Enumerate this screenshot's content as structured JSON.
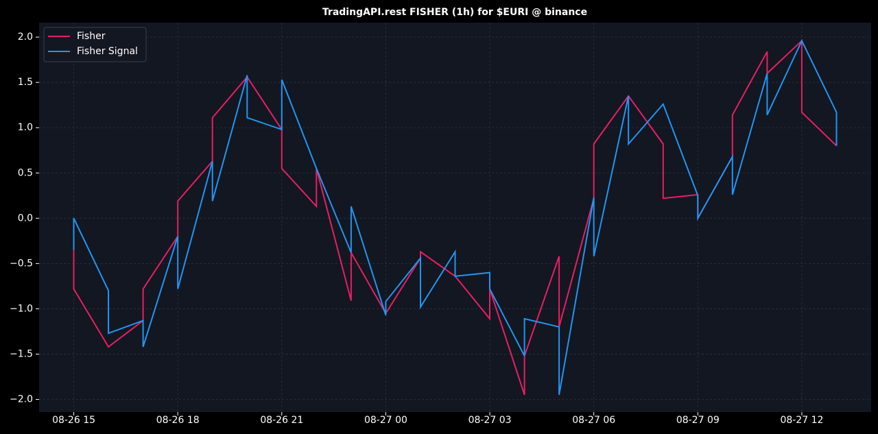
{
  "chart_data": {
    "type": "line",
    "title": "TradingAPI.rest FISHER (1h) for $EURI @ binance",
    "x": [
      "08-26 15",
      "08-26 15",
      "08-26 16",
      "08-26 16",
      "08-26 17",
      "08-26 17",
      "08-26 18",
      "08-26 18",
      "08-26 19",
      "08-26 19",
      "08-26 20",
      "08-26 20",
      "08-26 21",
      "08-26 21",
      "08-26 22",
      "08-26 22",
      "08-26 23",
      "08-26 23",
      "08-27 00",
      "08-27 00",
      "08-27 01",
      "08-27 01",
      "08-27 02",
      "08-27 02",
      "08-27 03",
      "08-27 03",
      "08-27 04",
      "08-27 04",
      "08-27 05",
      "08-27 05",
      "08-27 06",
      "08-27 06",
      "08-27 07",
      "08-27 07",
      "08-27 08",
      "08-27 08",
      "08-27 09",
      "08-27 09",
      "08-27 10",
      "08-27 10",
      "08-27 11",
      "08-27 11",
      "08-27 12",
      "08-27 12",
      "08-27 13",
      "08-27 13"
    ],
    "series": [
      {
        "name": "Fisher",
        "color": "#e91e63",
        "values": [
          -0.35,
          -0.78,
          -1.42,
          -1.42,
          -1.13,
          -0.78,
          -0.2,
          0.19,
          0.63,
          1.11,
          1.56,
          1.56,
          0.98,
          0.55,
          0.13,
          0.55,
          -0.91,
          -0.38,
          -1.05,
          -1.05,
          -0.44,
          -0.37,
          -0.64,
          -0.64,
          -1.11,
          -0.78,
          -1.95,
          -1.52,
          -0.42,
          -1.2,
          0.22,
          0.82,
          1.35,
          1.35,
          0.82,
          0.22,
          0.26,
          0.0,
          0.68,
          1.14,
          1.84,
          1.6,
          1.96,
          1.17,
          0.8,
          0.8
        ]
      },
      {
        "name": "Fisher Signal",
        "color": "#2196f3",
        "values": [
          -0.35,
          0.0,
          -0.8,
          -1.27,
          -1.13,
          -1.42,
          -0.2,
          -0.78,
          0.63,
          0.19,
          1.58,
          1.11,
          0.98,
          1.53,
          0.55,
          0.55,
          -0.38,
          0.13,
          -1.07,
          -0.92,
          -0.44,
          -0.98,
          -0.37,
          -0.64,
          -0.6,
          -0.78,
          -1.52,
          -1.11,
          -1.2,
          -1.95,
          0.23,
          -0.42,
          1.35,
          0.82,
          1.26,
          1.26,
          0.25,
          0.0,
          0.68,
          0.26,
          1.6,
          1.14,
          1.96,
          1.96,
          1.17,
          0.8
        ]
      }
    ],
    "xlim": [
      "08-26 14",
      "08-27 14"
    ],
    "xticks": [
      "08-26 15",
      "08-26 18",
      "08-26 21",
      "08-27 00",
      "08-27 03",
      "08-27 06",
      "08-27 09",
      "08-27 12"
    ],
    "ylim": [
      -2.14,
      2.16
    ],
    "yticks": [
      {
        "value": 2.0,
        "label": "2.0"
      },
      {
        "value": 1.5,
        "label": "1.5"
      },
      {
        "value": 1.0,
        "label": "1.0"
      },
      {
        "value": 0.5,
        "label": "0.5"
      },
      {
        "value": 0.0,
        "label": "0.0"
      },
      {
        "value": -0.5,
        "label": "−0.5"
      },
      {
        "value": -1.0,
        "label": "−1.0"
      },
      {
        "value": -1.5,
        "label": "−1.5"
      },
      {
        "value": -2.0,
        "label": "−2.0"
      }
    ],
    "grid": true,
    "legend": "upper left"
  }
}
